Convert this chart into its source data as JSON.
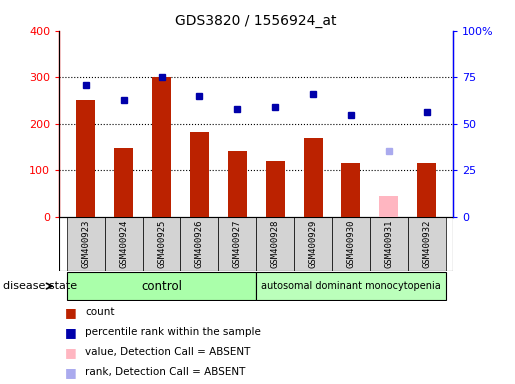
{
  "title": "GDS3820 / 1556924_at",
  "samples": [
    "GSM400923",
    "GSM400924",
    "GSM400925",
    "GSM400926",
    "GSM400927",
    "GSM400928",
    "GSM400929",
    "GSM400930",
    "GSM400931",
    "GSM400932"
  ],
  "count_values": [
    252,
    148,
    300,
    182,
    142,
    120,
    170,
    115,
    null,
    115
  ],
  "count_absent": [
    null,
    null,
    null,
    null,
    null,
    null,
    null,
    null,
    45,
    null
  ],
  "percentile_values": [
    283,
    252,
    300,
    260,
    232,
    237,
    265,
    218,
    null,
    225
  ],
  "percentile_absent": [
    null,
    null,
    null,
    null,
    null,
    null,
    null,
    null,
    142,
    null
  ],
  "ylim_left": [
    0,
    400
  ],
  "ylim_right": [
    0,
    100
  ],
  "yticks_left": [
    0,
    100,
    200,
    300,
    400
  ],
  "yticks_right": [
    0,
    25,
    50,
    75,
    100
  ],
  "ytick_labels_right": [
    "0",
    "25",
    "50",
    "75",
    "100%"
  ],
  "bar_color_present": "#BB2200",
  "bar_color_absent": "#FFB6C1",
  "dot_color_present": "#0000AA",
  "dot_color_absent": "#AAAAEE",
  "bar_width": 0.5,
  "tick_bg_color": "#D3D3D3",
  "control_color": "#AAFFAA",
  "disease_color": "#BBFFBB",
  "legend_items": [
    {
      "color": "#BB2200",
      "label": "count"
    },
    {
      "color": "#0000AA",
      "label": "percentile rank within the sample"
    },
    {
      "color": "#FFB6C1",
      "label": "value, Detection Call = ABSENT"
    },
    {
      "color": "#AAAAEE",
      "label": "rank, Detection Call = ABSENT"
    }
  ]
}
